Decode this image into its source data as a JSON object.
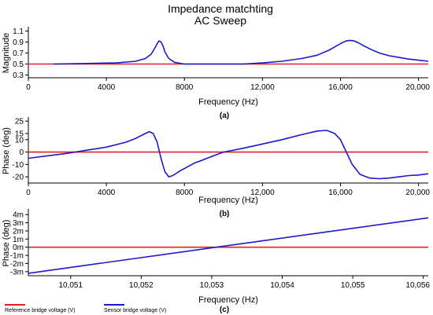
{
  "title_line1": "Impedance matchting",
  "title_line2": "AC Sweep",
  "colors": {
    "reference": "#e02020",
    "sensor": "#1a1acc",
    "axis": "#000000"
  },
  "legend": [
    {
      "label": "Reference bridge voltage (V)",
      "color": "#e02020"
    },
    {
      "label": "Sensor bridge voltage (V)",
      "color": "#1a1acc"
    }
  ],
  "chart_data": [
    {
      "type": "line",
      "sublabel": "(a)",
      "xlabel": "Frequency (Hz)",
      "ylabel": "Magnitude",
      "xlim": [
        0,
        20500
      ],
      "ylim": [
        0.25,
        1.15
      ],
      "xticks": [
        0,
        4000,
        8000,
        12000,
        16000,
        20000
      ],
      "xtick_labels": [
        "0",
        "4000",
        "8000",
        "12,000",
        "16,000",
        "20,000"
      ],
      "yticks": [
        0.3,
        0.5,
        0.7,
        0.9,
        1.1
      ],
      "ytick_labels": [
        "0.3",
        "0.5",
        "0.7",
        "0.9",
        "1.1"
      ],
      "series": [
        {
          "key": "reference",
          "x": [
            0,
            20500
          ],
          "y": [
            0.5,
            0.5
          ]
        },
        {
          "key": "sensor",
          "x": [
            1300,
            3000,
            4500,
            5500,
            6000,
            6300,
            6500,
            6600,
            6700,
            6800,
            6900,
            7000,
            7200,
            7500,
            8000,
            9000,
            10000,
            11000,
            12000,
            13000,
            14000,
            14800,
            15400,
            15800,
            16100,
            16300,
            16500,
            16700,
            16900,
            17200,
            17600,
            18000,
            18500,
            19000,
            19500,
            20000,
            20500
          ],
          "y": [
            0.5,
            0.51,
            0.52,
            0.55,
            0.6,
            0.68,
            0.8,
            0.87,
            0.92,
            0.9,
            0.83,
            0.72,
            0.6,
            0.53,
            0.5,
            0.5,
            0.5,
            0.5,
            0.52,
            0.55,
            0.6,
            0.66,
            0.75,
            0.83,
            0.89,
            0.92,
            0.93,
            0.92,
            0.89,
            0.83,
            0.76,
            0.7,
            0.65,
            0.62,
            0.59,
            0.57,
            0.55
          ]
        }
      ]
    },
    {
      "type": "line",
      "sublabel": "(b)",
      "xlabel": "Frequency (Hz)",
      "ylabel": "Phase (deg)",
      "xlim": [
        0,
        20500
      ],
      "ylim": [
        -25,
        27
      ],
      "xticks": [
        0,
        4000,
        8000,
        12000,
        16000,
        20000
      ],
      "xtick_labels": [
        "0",
        "4000",
        "8000",
        "12,000",
        "16,000",
        "20,000"
      ],
      "yticks": [
        -20,
        -10,
        0,
        10,
        15,
        25
      ],
      "ytick_labels": [
        "-20",
        "-10",
        "0",
        "10",
        "15",
        "25"
      ],
      "series": [
        {
          "key": "reference",
          "x": [
            0,
            20500
          ],
          "y": [
            0,
            0
          ]
        },
        {
          "key": "sensor",
          "x": [
            0,
            1000,
            2000,
            3000,
            4000,
            5000,
            5500,
            6000,
            6200,
            6400,
            6600,
            6800,
            7000,
            7200,
            7400,
            7800,
            8500,
            9500,
            10000,
            11000,
            12000,
            13000,
            14000,
            14800,
            15300,
            15700,
            16000,
            16300,
            16600,
            17000,
            17500,
            18000,
            18500,
            19000,
            19500,
            20000,
            20500
          ],
          "y": [
            -5,
            -3,
            -1,
            1.5,
            4,
            8,
            11,
            15,
            16.5,
            15,
            8,
            -5,
            -16,
            -20,
            -19,
            -15,
            -9,
            -3,
            0,
            3,
            6.5,
            10,
            14,
            17,
            17.5,
            15,
            10,
            0,
            -10,
            -18,
            -21,
            -21.5,
            -21,
            -20,
            -19,
            -18.5,
            -17.5
          ]
        }
      ]
    },
    {
      "type": "line",
      "sublabel": "(c)",
      "xlabel": "Frequency (Hz)",
      "ylabel": "Phase (deg)",
      "xlim": [
        10050.4,
        10056.07
      ],
      "ylim": [
        -0.0035,
        0.0045
      ],
      "xticks": [
        10051,
        10052,
        10053,
        10054,
        10055,
        10056
      ],
      "xtick_labels": [
        "10,051",
        "10,052",
        "10,053",
        "10,054",
        "10,055",
        "10,056"
      ],
      "yticks": [
        -0.003,
        -0.002,
        -0.001,
        0,
        0.001,
        0.002,
        0.003,
        0.004
      ],
      "ytick_labels": [
        "-3m",
        "-2m",
        "-1m",
        "0m",
        "1m",
        "2m",
        "3m",
        "4m"
      ],
      "series": [
        {
          "key": "reference",
          "x": [
            10050.4,
            10056.07
          ],
          "y": [
            0,
            0
          ]
        },
        {
          "key": "sensor",
          "x": [
            10050.4,
            10056.07
          ],
          "y": [
            -0.0032,
            0.0036
          ]
        }
      ]
    }
  ]
}
